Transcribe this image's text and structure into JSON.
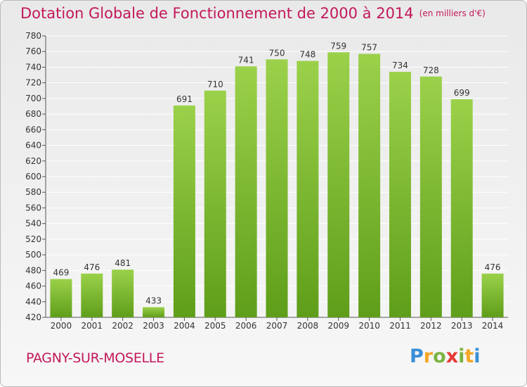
{
  "title": "Dotation Globale de Fonctionnement de 2000 à 2014",
  "unit": "(en milliers d'€)",
  "commune": "PAGNY-SUR-MOSELLE",
  "logo": {
    "letters": [
      {
        "ch": "P",
        "color": "#3a8fd6"
      },
      {
        "ch": "r",
        "color": "#f5a623"
      },
      {
        "ch": "o",
        "color": "#7cb342"
      },
      {
        "ch": "x",
        "color": "#e53935"
      },
      {
        "ch": "i",
        "color": "#7cb342"
      },
      {
        "ch": "t",
        "color": "#f5a623"
      },
      {
        "ch": "i",
        "color": "#3a8fd6"
      }
    ]
  },
  "colors": {
    "bar_top": "#9bd14a",
    "bar_bottom": "#5f9e1a",
    "title": "#c2185b",
    "grid": "#ffffff"
  },
  "chart_data": {
    "type": "bar",
    "categories": [
      "2000",
      "2001",
      "2002",
      "2003",
      "2004",
      "2005",
      "2006",
      "2007",
      "2008",
      "2009",
      "2010",
      "2011",
      "2012",
      "2013",
      "2014"
    ],
    "values": [
      469,
      476,
      481,
      433,
      691,
      710,
      741,
      750,
      748,
      759,
      757,
      734,
      728,
      699,
      476
    ],
    "title": "Dotation Globale de Fonctionnement de 2000 à 2014",
    "ylabel": "",
    "xlabel": "",
    "ylim": [
      420,
      780
    ],
    "ytick_step": 20,
    "grid": true,
    "data_labels": true
  }
}
